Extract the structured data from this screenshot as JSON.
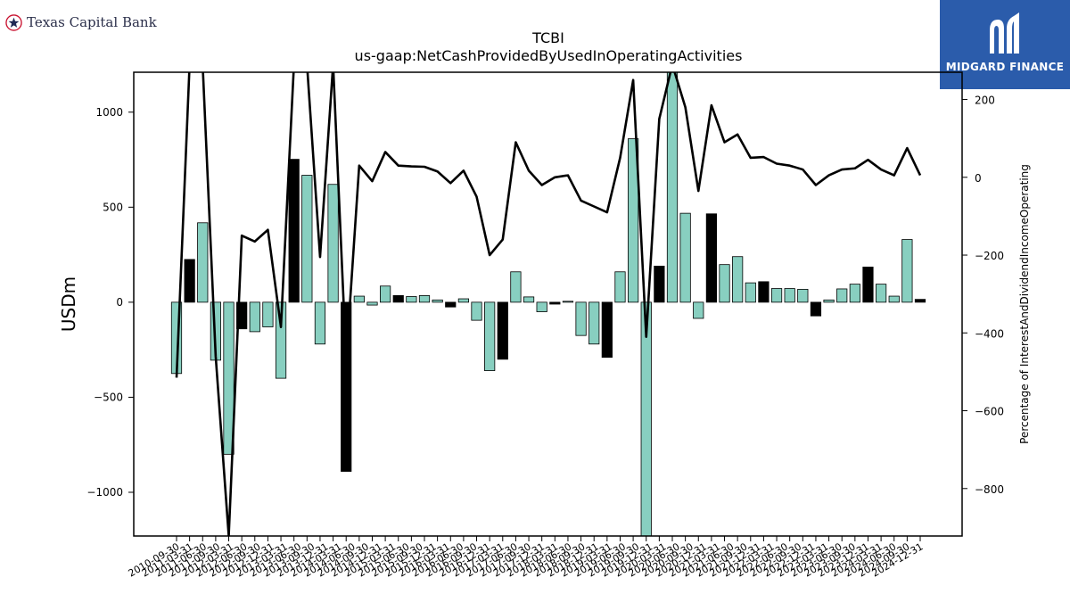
{
  "brand": {
    "left_logo_text": "Texas Capital Bank",
    "right_logo_text": "MIDGARD FINANCE",
    "right_logo_bg": "#2b5cab"
  },
  "chart_data": {
    "type": "bar",
    "title": "TCBI",
    "subtitle": "us-gaap:NetCashProvidedByUsedInOperatingActivities",
    "ylabel": "USDm",
    "y2label": "Percentage of InterestAndDividendIncomeOperating",
    "ylim": [
      -1230,
      1210
    ],
    "y2lim": [
      -922,
      270
    ],
    "yticks": [
      -1000,
      -500,
      0,
      500,
      1000
    ],
    "y2ticks": [
      -800,
      -600,
      -400,
      -200,
      0,
      200
    ],
    "grid": false,
    "colors": {
      "q4_bar": "#000000",
      "other_bar": "#88cfc0",
      "line": "#000000"
    },
    "x_tick_labels": [
      "2010-09-30",
      "2011-03-31",
      "2011-06-30",
      "2011-09-30",
      "2012-03-31",
      "2012-06-30",
      "2012-09-30",
      "2012-12-31",
      "2013-03-31",
      "2013-06-30",
      "2013-09-30",
      "2013-12-31",
      "2014-03-31",
      "2014-06-30",
      "2014-09-30",
      "2014-12-31",
      "2015-03-31",
      "2015-06-30",
      "2015-09-30",
      "2015-12-31",
      "2016-03-31",
      "2016-06-30",
      "2016-09-30",
      "2016-12-31",
      "2017-03-31",
      "2017-06-30",
      "2017-09-30",
      "2017-12-31",
      "2018-03-31",
      "2018-06-30",
      "2018-09-30",
      "2018-12-31",
      "2019-03-31",
      "2019-06-30",
      "2019-09-30",
      "2019-12-31",
      "2020-03-31",
      "2020-06-30",
      "2020-09-30",
      "2020-12-31",
      "2021-03-31",
      "2021-06-30",
      "2021-09-30",
      "2021-12-31",
      "2022-03-31",
      "2022-06-30",
      "2022-09-30",
      "2022-12-31",
      "2023-03-31",
      "2023-06-30",
      "2023-09-30",
      "2023-12-31",
      "2024-03-31",
      "2024-06-30",
      "2024-09-30",
      "2024-12-31"
    ],
    "categories": [
      "2010-09-30",
      "2010-12-31",
      "2011-03-31",
      "2011-06-30",
      "2011-09-30",
      "2011-12-31",
      "2012-03-31",
      "2012-06-30",
      "2012-09-30",
      "2012-12-31",
      "2013-03-31",
      "2013-06-30",
      "2013-09-30",
      "2013-12-31",
      "2014-03-31",
      "2014-06-30",
      "2014-09-30",
      "2014-12-31",
      "2015-03-31",
      "2015-06-30",
      "2015-09-30",
      "2015-12-31",
      "2016-03-31",
      "2016-06-30",
      "2016-09-30",
      "2016-12-31",
      "2017-03-31",
      "2017-06-30",
      "2017-09-30",
      "2017-12-31",
      "2018-03-31",
      "2018-06-30",
      "2018-09-30",
      "2018-12-31",
      "2019-03-31",
      "2019-06-30",
      "2019-09-30",
      "2019-12-31",
      "2020-03-31",
      "2020-06-30",
      "2020-09-30",
      "2020-12-31",
      "2021-03-31",
      "2021-06-30",
      "2021-09-30",
      "2021-12-31",
      "2022-03-31",
      "2022-06-30",
      "2022-09-30",
      "2022-12-31",
      "2023-03-31",
      "2023-06-30",
      "2023-09-30",
      "2023-12-31",
      "2024-03-31",
      "2024-06-30",
      "2024-09-30",
      "2024-12-31"
    ],
    "series": [
      {
        "values": [
          -375,
          225,
          418,
          -305,
          -800,
          -140,
          -155,
          -130,
          -400,
          752,
          668,
          -220,
          620,
          -890,
          32,
          -15,
          85,
          35,
          30,
          35,
          12,
          -25,
          18,
          -95,
          -360,
          -300,
          160,
          28,
          -50,
          -10,
          5,
          -175,
          -220,
          -290,
          160,
          860,
          -1280,
          190,
          1290,
          468,
          -85,
          465,
          198,
          240,
          102,
          108,
          72,
          72,
          68,
          -72,
          12,
          70,
          95,
          185,
          95,
          32,
          330,
          15
        ]
      },
      {
        "axis": "right",
        "type": "line",
        "values": [
          -515,
          290,
          290,
          -460,
          -922,
          -150,
          -165,
          -135,
          -385,
          290,
          290,
          -205,
          290,
          -470,
          30,
          -10,
          65,
          30,
          28,
          27,
          15,
          -15,
          17,
          -50,
          -200,
          -160,
          90,
          17,
          -20,
          0,
          5,
          -60,
          -75,
          -90,
          50,
          250,
          -410,
          150,
          290,
          180,
          -35,
          185,
          90,
          110,
          50,
          52,
          35,
          30,
          20,
          -20,
          5,
          20,
          23,
          45,
          20,
          5,
          75,
          5
        ]
      }
    ]
  }
}
